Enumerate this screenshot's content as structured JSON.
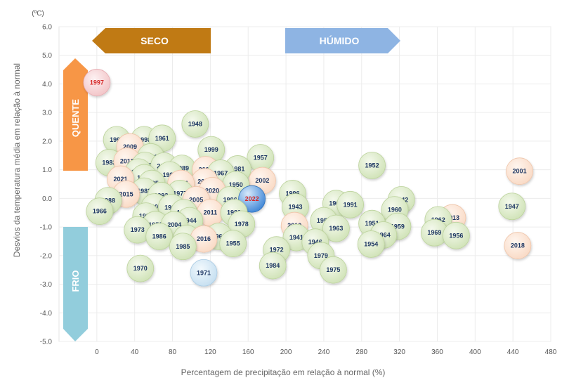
{
  "chart_data": {
    "type": "scatter",
    "title": "",
    "xlabel": "Percentagem de precipitação em relação à normal (%)",
    "ylabel": "Desvios da temperatura média em relação à normal",
    "yunit": "(ºC)",
    "xlim": [
      -40,
      480
    ],
    "ylim": [
      -5,
      6
    ],
    "xticks": [
      0,
      40,
      80,
      120,
      160,
      200,
      240,
      280,
      320,
      360,
      400,
      440,
      480
    ],
    "yticks": [
      6,
      5,
      4,
      3,
      2,
      1,
      0,
      -1,
      -2,
      -3,
      -4,
      -5
    ],
    "ytick_labels": [
      "6.0",
      "5.0",
      "4.0",
      "3.0",
      "2.0",
      "1.0",
      "0.0",
      "-1.0",
      "-2.0",
      "-3.0",
      "-4.0",
      "-5.0"
    ],
    "grid": true,
    "colors": {
      "default": "#d9e8c4",
      "warm": "#fbe1d0",
      "cold": "#d5e8f4",
      "hot_record": "#f6d1d3",
      "current": "#5b9bd5",
      "label": "#1f3864",
      "label_highlight": "#d62828"
    },
    "banners": {
      "dry": {
        "label": "SECO",
        "color": "#c07a14"
      },
      "wet": {
        "label": "HÚMIDO",
        "color": "#8eb4e3"
      },
      "hot": {
        "label": "QUENTE",
        "color": "#f79646"
      },
      "cold": {
        "label": "FRIO",
        "color": "#92cddc"
      }
    },
    "points": [
      {
        "year": "1997",
        "x": 0,
        "y": 4.05,
        "kind": "hot_record"
      },
      {
        "year": "1948",
        "x": 104,
        "y": 2.6,
        "kind": "default"
      },
      {
        "year": "1994",
        "x": 21,
        "y": 2.05,
        "kind": "default"
      },
      {
        "year": "1998",
        "x": 50,
        "y": 2.05,
        "kind": "default"
      },
      {
        "year": "1961",
        "x": 69,
        "y": 2.1,
        "kind": "default"
      },
      {
        "year": "2009",
        "x": 35,
        "y": 1.8,
        "kind": "warm"
      },
      {
        "year": "1999",
        "x": 121,
        "y": 1.7,
        "kind": "default"
      },
      {
        "year": "1957",
        "x": 173,
        "y": 1.42,
        "kind": "default"
      },
      {
        "year": "1990",
        "x": 57,
        "y": 1.45,
        "kind": "default"
      },
      {
        "year": "1983",
        "x": 13,
        "y": 1.25,
        "kind": "default"
      },
      {
        "year": "2012",
        "x": 32,
        "y": 1.3,
        "kind": "warm"
      },
      {
        "year": "2000",
        "x": 51,
        "y": 1.15,
        "kind": "default"
      },
      {
        "year": "2019",
        "x": 71,
        "y": 1.13,
        "kind": "default"
      },
      {
        "year": "1989",
        "x": 90,
        "y": 1.05,
        "kind": "default"
      },
      {
        "year": "2003",
        "x": 115,
        "y": 1.0,
        "kind": "warm"
      },
      {
        "year": "1981",
        "x": 149,
        "y": 1.03,
        "kind": "default"
      },
      {
        "year": "1952",
        "x": 291,
        "y": 1.15,
        "kind": "default"
      },
      {
        "year": "2001",
        "x": 447,
        "y": 0.95,
        "kind": "warm"
      },
      {
        "year": "1945",
        "x": 44,
        "y": 0.92,
        "kind": "default"
      },
      {
        "year": "1967",
        "x": 131,
        "y": 0.88,
        "kind": "default"
      },
      {
        "year": "1987",
        "x": 77,
        "y": 0.82,
        "kind": "default"
      },
      {
        "year": "1992",
        "x": 50,
        "y": 0.72,
        "kind": "default"
      },
      {
        "year": "2021",
        "x": 25,
        "y": 0.67,
        "kind": "warm"
      },
      {
        "year": "2017",
        "x": 114,
        "y": 0.58,
        "kind": "warm"
      },
      {
        "year": "2002",
        "x": 175,
        "y": 0.62,
        "kind": "warm"
      },
      {
        "year": "1995",
        "x": 58,
        "y": 0.52,
        "kind": "default"
      },
      {
        "year": "2014",
        "x": 89,
        "y": 0.52,
        "kind": "warm"
      },
      {
        "year": "1950",
        "x": 147,
        "y": 0.48,
        "kind": "default"
      },
      {
        "year": "2020",
        "x": 122,
        "y": 0.27,
        "kind": "warm"
      },
      {
        "year": "1982",
        "x": 50,
        "y": 0.25,
        "kind": "default"
      },
      {
        "year": "2015",
        "x": 31,
        "y": 0.15,
        "kind": "warm"
      },
      {
        "year": "1977",
        "x": 88,
        "y": 0.17,
        "kind": "default"
      },
      {
        "year": "1993",
        "x": 68,
        "y": 0.1,
        "kind": "default"
      },
      {
        "year": "1996",
        "x": 207,
        "y": 0.17,
        "kind": "default"
      },
      {
        "year": "1988",
        "x": 12,
        "y": -0.08,
        "kind": "default"
      },
      {
        "year": "2005",
        "x": 105,
        "y": -0.05,
        "kind": "warm"
      },
      {
        "year": "1996",
        "x": 141,
        "y": -0.05,
        "kind": "default"
      },
      {
        "year": "2022",
        "x": 164,
        "y": -0.02,
        "kind": "current"
      },
      {
        "year": "1942",
        "x": 322,
        "y": -0.05,
        "kind": "default"
      },
      {
        "year": "1965",
        "x": 253,
        "y": -0.18,
        "kind": "default"
      },
      {
        "year": "1991",
        "x": 268,
        "y": -0.22,
        "kind": "default"
      },
      {
        "year": "1943",
        "x": 210,
        "y": -0.3,
        "kind": "default"
      },
      {
        "year": "1947",
        "x": 439,
        "y": -0.28,
        "kind": "default"
      },
      {
        "year": "2008",
        "x": 61,
        "y": -0.3,
        "kind": "default"
      },
      {
        "year": "1939",
        "x": 79,
        "y": -0.32,
        "kind": "default"
      },
      {
        "year": "1966",
        "x": 3,
        "y": -0.45,
        "kind": "default"
      },
      {
        "year": "1960",
        "x": 315,
        "y": -0.4,
        "kind": "default"
      },
      {
        "year": "1976",
        "x": 92,
        "y": -0.5,
        "kind": "default"
      },
      {
        "year": "2011",
        "x": 120,
        "y": -0.5,
        "kind": "warm"
      },
      {
        "year": "1980",
        "x": 145,
        "y": -0.5,
        "kind": "default"
      },
      {
        "year": "1997",
        "x": 52,
        "y": -0.62,
        "kind": "default"
      },
      {
        "year": "2013",
        "x": 376,
        "y": -0.68,
        "kind": "warm"
      },
      {
        "year": "1944",
        "x": 98,
        "y": -0.78,
        "kind": "default"
      },
      {
        "year": "1958",
        "x": 240,
        "y": -0.78,
        "kind": "default"
      },
      {
        "year": "1962",
        "x": 361,
        "y": -0.75,
        "kind": "default"
      },
      {
        "year": "1953",
        "x": 62,
        "y": -0.92,
        "kind": "default"
      },
      {
        "year": "2004",
        "x": 82,
        "y": -0.92,
        "kind": "default"
      },
      {
        "year": "1978",
        "x": 153,
        "y": -0.9,
        "kind": "default"
      },
      {
        "year": "1951",
        "x": 291,
        "y": -0.88,
        "kind": "default"
      },
      {
        "year": "2010",
        "x": 209,
        "y": -0.95,
        "kind": "warm"
      },
      {
        "year": "1959",
        "x": 318,
        "y": -0.98,
        "kind": "default"
      },
      {
        "year": "1973",
        "x": 43,
        "y": -1.1,
        "kind": "default"
      },
      {
        "year": "1963",
        "x": 253,
        "y": -1.05,
        "kind": "default"
      },
      {
        "year": "1969",
        "x": 357,
        "y": -1.2,
        "kind": "default"
      },
      {
        "year": "1956",
        "x": 380,
        "y": -1.3,
        "kind": "default"
      },
      {
        "year": "1964",
        "x": 303,
        "y": -1.28,
        "kind": "default"
      },
      {
        "year": "1986",
        "x": 66,
        "y": -1.33,
        "kind": "default"
      },
      {
        "year": "1941",
        "x": 211,
        "y": -1.37,
        "kind": "default"
      },
      {
        "year": "1968",
        "x": 129,
        "y": -1.33,
        "kind": "default"
      },
      {
        "year": "1974",
        "x": 95,
        "y": -1.4,
        "kind": "default"
      },
      {
        "year": "2016",
        "x": 113,
        "y": -1.42,
        "kind": "warm"
      },
      {
        "year": "1946",
        "x": 231,
        "y": -1.53,
        "kind": "default"
      },
      {
        "year": "1955",
        "x": 144,
        "y": -1.58,
        "kind": "default"
      },
      {
        "year": "1954",
        "x": 290,
        "y": -1.6,
        "kind": "default"
      },
      {
        "year": "2018",
        "x": 445,
        "y": -1.65,
        "kind": "warm"
      },
      {
        "year": "1985",
        "x": 91,
        "y": -1.68,
        "kind": "default"
      },
      {
        "year": "1972",
        "x": 190,
        "y": -1.8,
        "kind": "default"
      },
      {
        "year": "1979",
        "x": 237,
        "y": -2.0,
        "kind": "default"
      },
      {
        "year": "1984",
        "x": 186,
        "y": -2.35,
        "kind": "default"
      },
      {
        "year": "1970",
        "x": 46,
        "y": -2.45,
        "kind": "default"
      },
      {
        "year": "1975",
        "x": 250,
        "y": -2.5,
        "kind": "default"
      },
      {
        "year": "1971",
        "x": 113,
        "y": -2.6,
        "kind": "cold"
      }
    ]
  }
}
